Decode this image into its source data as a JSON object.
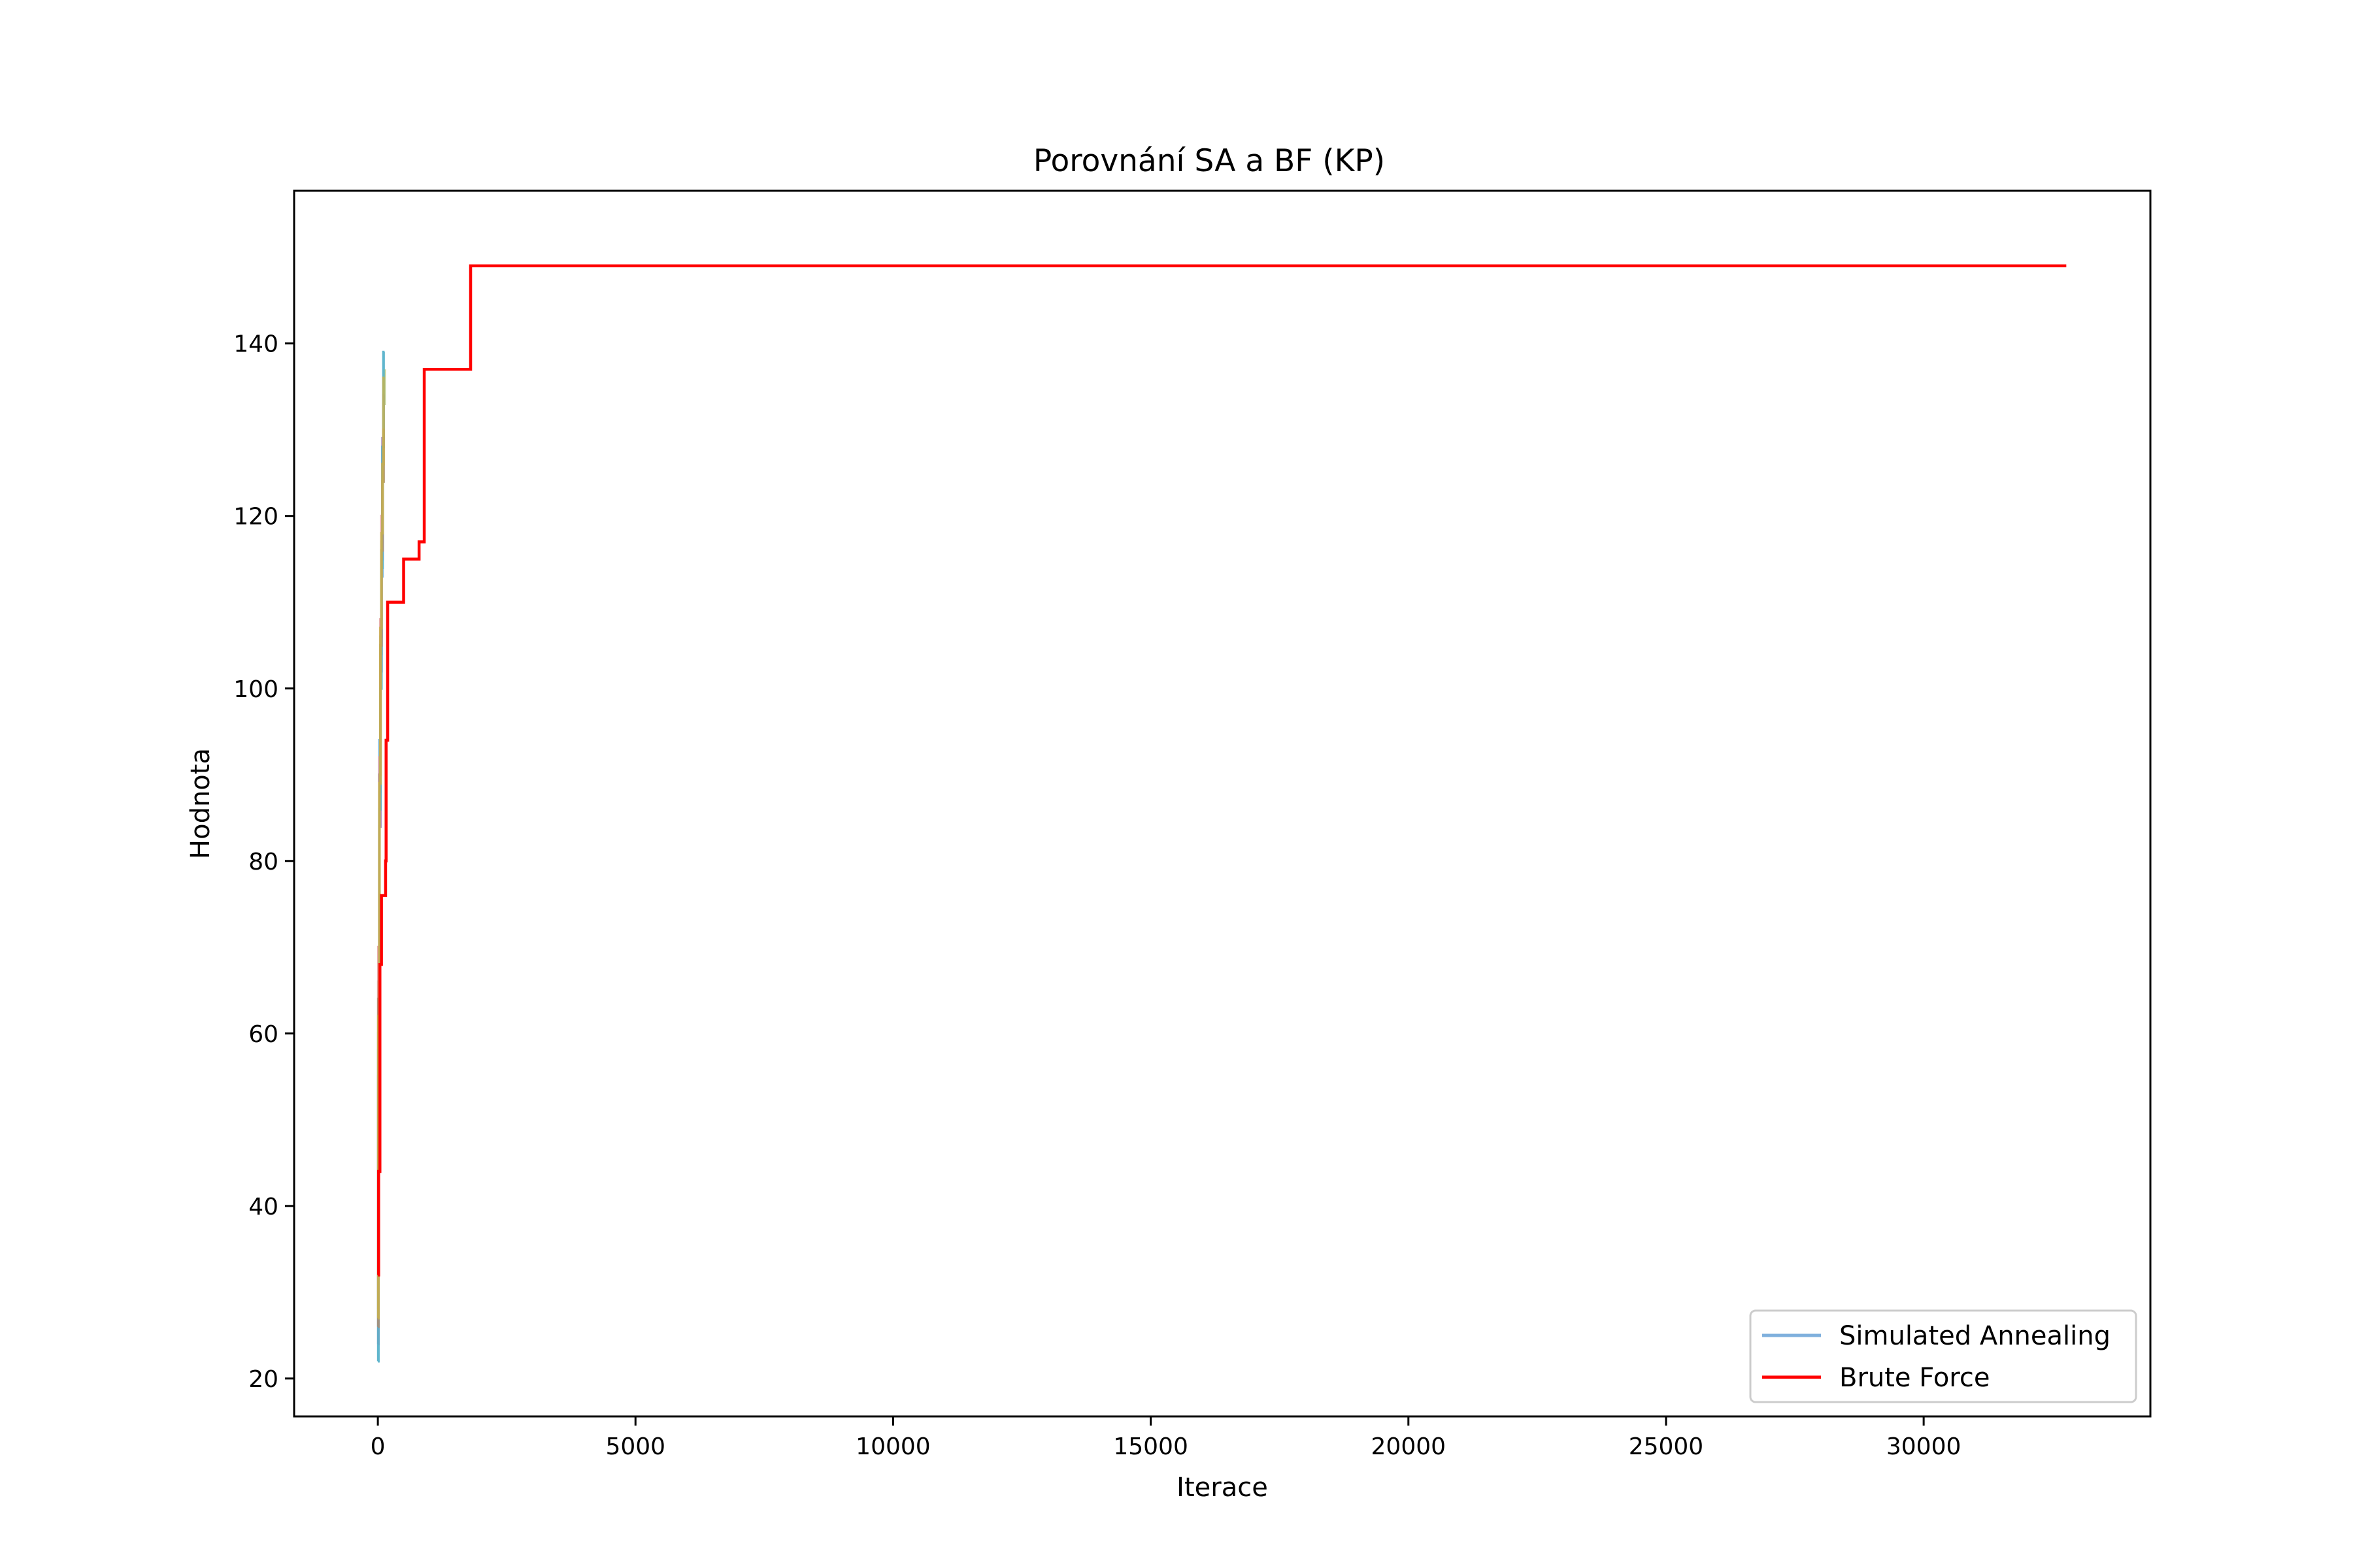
{
  "chart_data": {
    "type": "line",
    "title": "Porovnání SA a BF (KP)",
    "xlabel": "Iterace",
    "ylabel": "Hodnota",
    "xlim": [
      -1625,
      34400
    ],
    "ylim": [
      15.6,
      157.7
    ],
    "xticks": [
      0,
      5000,
      10000,
      15000,
      20000,
      25000,
      30000
    ],
    "yticks": [
      20,
      40,
      60,
      80,
      100,
      120,
      140
    ],
    "grid": false,
    "legend_position": "lower right",
    "legend": [
      {
        "label": "Simulated Annealing",
        "color": "#7fb0dd"
      },
      {
        "label": "Brute Force",
        "color": "#ff0000"
      }
    ],
    "series": [
      {
        "name": "Brute Force",
        "color": "#ff0000",
        "step": true,
        "x": [
          0,
          15,
          40,
          70,
          80,
          150,
          160,
          190,
          200,
          450,
          500,
          750,
          800,
          900,
          950,
          1750,
          1800,
          32768
        ],
        "y": [
          32,
          44,
          68,
          76,
          76,
          80,
          94,
          110,
          110,
          110,
          115,
          115,
          117,
          137,
          137,
          137,
          149,
          149
        ]
      }
    ],
    "sa_runs": [
      {
        "color": "#6aaed6",
        "x": [
          0,
          10,
          30,
          50,
          70,
          90,
          110,
          130
        ],
        "y": [
          22,
          60,
          94,
          106,
          113,
          128,
          139,
          139
        ]
      },
      {
        "color": "#b4c47a",
        "x": [
          0,
          10,
          30,
          50,
          70,
          90,
          110,
          130
        ],
        "y": [
          28,
          66,
          88,
          104,
          117,
          124,
          133,
          137
        ]
      },
      {
        "color": "#9a7fb8",
        "x": [
          0,
          10,
          30,
          50,
          70,
          90,
          110,
          130
        ],
        "y": [
          24,
          55,
          84,
          102,
          115,
          129,
          134,
          134
        ]
      },
      {
        "color": "#e39a9a",
        "x": [
          0,
          10,
          30,
          50,
          70,
          90,
          110,
          130
        ],
        "y": [
          30,
          70,
          92,
          108,
          120,
          126,
          133,
          133
        ]
      },
      {
        "color": "#56b4c8",
        "x": [
          0,
          10,
          30,
          50,
          70,
          90,
          110,
          130
        ],
        "y": [
          22,
          58,
          86,
          100,
          114,
          128,
          139,
          139
        ]
      },
      {
        "color": "#b08b6e",
        "x": [
          0,
          10,
          30,
          50,
          70,
          90,
          110,
          130
        ],
        "y": [
          26,
          64,
          90,
          105,
          116,
          124,
          130,
          130
        ]
      },
      {
        "color": "#c9b34a",
        "x": [
          0,
          10,
          30,
          50,
          70,
          90,
          110,
          130
        ],
        "y": [
          27,
          62,
          89,
          107,
          118,
          126,
          136,
          136
        ]
      }
    ]
  }
}
